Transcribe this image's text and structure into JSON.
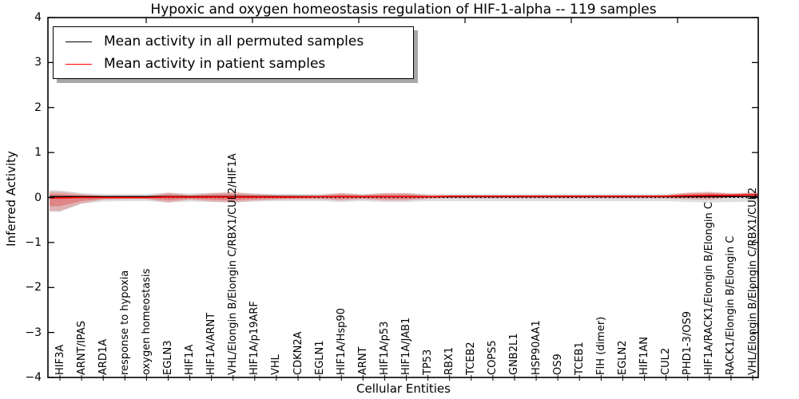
{
  "figure": {
    "title": "Hypoxic and oxygen homeostasis regulation of HIF-1-alpha -- 119 samples",
    "xlabel": "Cellular Entities",
    "ylabel": "Inferred Activity"
  },
  "legend": {
    "items": [
      {
        "label": "Mean activity in all permuted samples",
        "color": "#000000"
      },
      {
        "label": "Mean activity in patient samples",
        "color": "#ff0000"
      }
    ]
  },
  "chart_data": {
    "type": "line",
    "title": "Hypoxic and oxygen homeostasis regulation of HIF-1-alpha -- 119 samples",
    "xlabel": "Cellular Entities",
    "ylabel": "Inferred Activity",
    "ylim": [
      -4,
      4
    ],
    "ytick_labels": [
      "4",
      "3",
      "2",
      "1",
      "0",
      "−1",
      "−2",
      "−3",
      "−4"
    ],
    "yticks": [
      4,
      3,
      2,
      1,
      0,
      -1,
      -2,
      -3,
      -4
    ],
    "zero_line": {
      "y": 0,
      "style": "dotted",
      "color": "#000000"
    },
    "legend_position": "upper left",
    "entities": [
      "HIF3A",
      "ARNT/IPAS",
      "ARD1A",
      "response to hypoxia",
      "oxygen homeostasis",
      "EGLN3",
      "HIF1A",
      "HIF1A/ARNT",
      "VHL/Elongin B/Elongin C/RBX1/CUL2/HIF1A",
      "HIF1A/p19ARF",
      "VHL",
      "CDKN2A",
      "EGLN1",
      "HIF1A/Hsp90",
      "ARNT",
      "HIF1A/p53",
      "HIF1A/JAB1",
      "TP53",
      "RBX1",
      "TCEB2",
      "COPS5",
      "GNB2L1",
      "HSP90AA1",
      "OS9",
      "TCEB1",
      "FIH (dimer)",
      "EGLN2",
      "HIF1AN",
      "CUL2",
      "PHD1-3/OS9",
      "HIF1A/RACK1/Elongin B/Elongin C",
      "RACK1/Elongin B/Elongin C",
      "VHL/Elongin B/Elongin C/RBX1/CUL2"
    ],
    "series": [
      {
        "name": "Mean activity in all permuted samples",
        "color": "#000000",
        "values": [
          0.02,
          0.02,
          0.02,
          0.02,
          0.02,
          0.02,
          0.02,
          0.02,
          0.02,
          0.02,
          0.02,
          0.02,
          0.02,
          0.02,
          0.02,
          0.02,
          0.02,
          0.02,
          0.02,
          0.02,
          0.02,
          0.02,
          0.02,
          0.02,
          0.02,
          0.02,
          0.02,
          0.02,
          0.02,
          0.02,
          0.02,
          0.02,
          0.02
        ]
      },
      {
        "name": "Mean activity in patient samples",
        "color": "#ff0000",
        "values": [
          -0.01,
          0,
          0,
          0,
          0,
          0.01,
          0.01,
          0.01,
          0.01,
          0.01,
          0.01,
          0.01,
          0.02,
          0.02,
          0.02,
          0.02,
          0.02,
          0.02,
          0.03,
          0.03,
          0.03,
          0.03,
          0.03,
          0.03,
          0.03,
          0.03,
          0.03,
          0.03,
          0.03,
          0.04,
          0.05,
          0.05,
          0.06
        ]
      }
    ],
    "patient_band": {
      "color": "#e03c3c",
      "upper": [
        0.13,
        0.08,
        0.04,
        0.04,
        0.04,
        0.11,
        0.06,
        0.1,
        0.12,
        0.08,
        0.06,
        0.05,
        0.05,
        0.1,
        0.06,
        0.1,
        0.1,
        0.05,
        0.04,
        0.04,
        0.04,
        0.04,
        0.04,
        0.04,
        0.04,
        0.04,
        0.04,
        0.04,
        0.05,
        0.11,
        0.13,
        0.09,
        0.11
      ],
      "lower": [
        -0.3,
        -0.13,
        -0.05,
        -0.04,
        -0.04,
        -0.11,
        -0.05,
        -0.09,
        -0.11,
        -0.07,
        -0.05,
        -0.04,
        -0.04,
        -0.07,
        -0.04,
        -0.07,
        -0.07,
        -0.03,
        -0.02,
        -0.02,
        -0.02,
        -0.02,
        -0.02,
        -0.02,
        -0.02,
        -0.02,
        -0.02,
        -0.02,
        -0.02,
        -0.04,
        -0.05,
        0.0,
        0.01
      ]
    },
    "permuted_band": {
      "color": "#808080",
      "upper": [
        0.16,
        0.1,
        0.08,
        0.08,
        0.08,
        0.1,
        0.09,
        0.1,
        0.11,
        0.09,
        0.08,
        0.08,
        0.08,
        0.1,
        0.08,
        0.1,
        0.1,
        0.08,
        0.08,
        0.08,
        0.08,
        0.08,
        0.08,
        0.08,
        0.08,
        0.08,
        0.08,
        0.08,
        0.08,
        0.1,
        0.11,
        0.1,
        0.1
      ],
      "lower": [
        -0.32,
        -0.14,
        -0.09,
        -0.08,
        -0.08,
        -0.11,
        -0.09,
        -0.1,
        -0.11,
        -0.09,
        -0.08,
        -0.08,
        -0.08,
        -0.1,
        -0.08,
        -0.1,
        -0.1,
        -0.08,
        -0.08,
        -0.08,
        -0.08,
        -0.08,
        -0.08,
        -0.08,
        -0.08,
        -0.08,
        -0.08,
        -0.08,
        -0.08,
        -0.1,
        -0.11,
        -0.1,
        -0.09
      ]
    }
  }
}
